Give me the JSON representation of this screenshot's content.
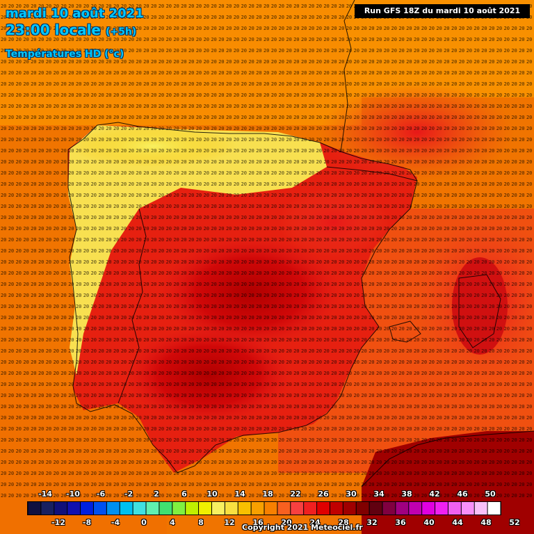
{
  "header": {
    "date_line": "mardi 10 août 2021",
    "time_line": "23:00 locale",
    "lead_time": "(+5h)",
    "variable": "Températures HD (°c)"
  },
  "run_info": "Run GFS 18Z du mardi 10 août 2021",
  "copyright": "Copyright 2021 Meteociel.fr",
  "legend": {
    "colors": [
      "#101040",
      "#182060",
      "#10107a",
      "#1010b0",
      "#0020e0",
      "#0050f0",
      "#0090f0",
      "#00c0f0",
      "#40e0e0",
      "#60f0b0",
      "#40e070",
      "#80f040",
      "#c0f000",
      "#f0f000",
      "#f8f060",
      "#f8e040",
      "#f8c000",
      "#f8a000",
      "#f88000",
      "#f86020",
      "#f84040",
      "#f02020",
      "#e00000",
      "#c00000",
      "#a00000",
      "#800000",
      "#600010",
      "#800040",
      "#a00080",
      "#c000b0",
      "#e000e0",
      "#f020f0",
      "#f060f0",
      "#f890f8",
      "#f8c0f8",
      "#ffffff"
    ],
    "top_labels": [
      "-14",
      "-10",
      "-6",
      "-2",
      "2",
      "6",
      "10",
      "14",
      "18",
      "22",
      "26",
      "30",
      "34",
      "38",
      "42",
      "46",
      "50"
    ],
    "bottom_labels": [
      "-12",
      "-8",
      "-4",
      "0",
      "4",
      "8",
      "12",
      "16",
      "20",
      "24",
      "28",
      "32",
      "36",
      "40",
      "44",
      "48",
      "52"
    ]
  }
}
